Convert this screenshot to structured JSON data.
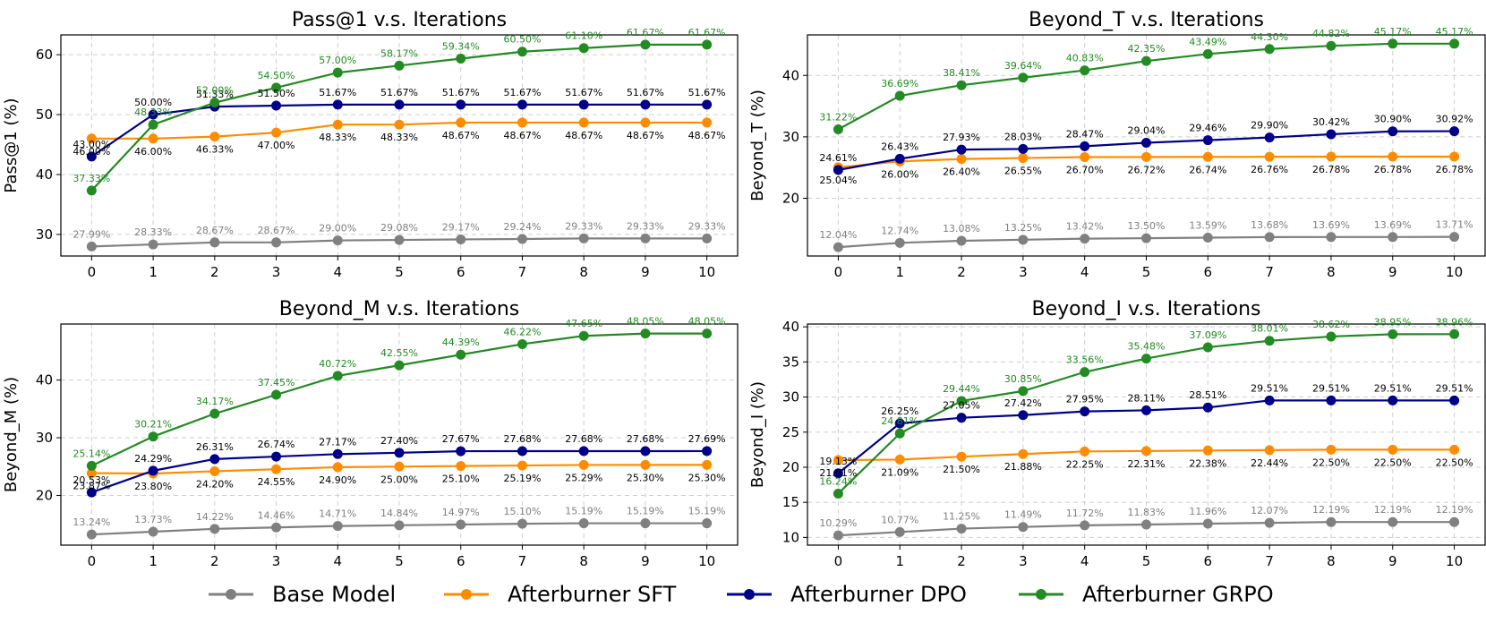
{
  "legend": {
    "items": [
      {
        "label": "Base Model",
        "color": "#808080"
      },
      {
        "label": "Afterburner SFT",
        "color": "#ff8c00"
      },
      {
        "label": "Afterburner DPO",
        "color": "#00008b"
      },
      {
        "label": "Afterburner GRPO",
        "color": "#228b22"
      }
    ]
  },
  "chart_data": [
    {
      "type": "line",
      "title": "Pass@1 v.s. Iterations",
      "xlabel": "",
      "ylabel": "Pass@1 (%)",
      "x": [
        0,
        1,
        2,
        3,
        4,
        5,
        6,
        7,
        8,
        9,
        10
      ],
      "xlim": [
        -0.5,
        10.5
      ],
      "ylim": [
        26.4,
        63.3
      ],
      "yticks": [
        30,
        40,
        50,
        60
      ],
      "grid": true,
      "series": [
        {
          "name": "Base Model",
          "color": "#808080",
          "values": [
            27.99,
            28.33,
            28.67,
            28.67,
            29.0,
            29.08,
            29.17,
            29.24,
            29.33,
            29.33,
            29.33
          ],
          "labels": [
            "27.99%",
            "28.33%",
            "28.67%",
            "28.67%",
            "29.00%",
            "29.08%",
            "29.17%",
            "29.24%",
            "29.33%",
            "29.33%",
            "29.33%"
          ]
        },
        {
          "name": "Afterburner SFT",
          "color": "#ff8c00",
          "label_color": "#000000",
          "values": [
            46.0,
            46.0,
            46.33,
            47.0,
            48.33,
            48.33,
            48.67,
            48.67,
            48.67,
            48.67,
            48.67
          ],
          "labels": [
            "46.00%",
            "46.00%",
            "46.33%",
            "47.00%",
            "48.33%",
            "48.33%",
            "48.67%",
            "48.67%",
            "48.67%",
            "48.67%",
            "48.67%"
          ]
        },
        {
          "name": "Afterburner DPO",
          "color": "#00008b",
          "label_color": "#000000",
          "values": [
            43.0,
            50.0,
            51.33,
            51.5,
            51.67,
            51.67,
            51.67,
            51.67,
            51.67,
            51.67,
            51.67
          ],
          "labels": [
            "43.00%",
            "50.00%",
            "51.33%",
            "51.50%",
            "51.67%",
            "51.67%",
            "51.67%",
            "51.67%",
            "51.67%",
            "51.67%",
            "51.67%"
          ]
        },
        {
          "name": "Afterburner GRPO",
          "color": "#228b22",
          "values": [
            37.33,
            48.33,
            52.0,
            54.5,
            57.0,
            58.17,
            59.34,
            60.5,
            61.1,
            61.67,
            61.67
          ],
          "labels": [
            "37.33%",
            "48.33%",
            "52.00%",
            "54.50%",
            "57.00%",
            "58.17%",
            "59.34%",
            "60.50%",
            "61.10%",
            "61.67%",
            "61.67%"
          ]
        }
      ]
    },
    {
      "type": "line",
      "title": "Beyond_T v.s. Iterations",
      "xlabel": "",
      "ylabel": "Beyond_T (%)",
      "x": [
        0,
        1,
        2,
        3,
        4,
        5,
        6,
        7,
        8,
        9,
        10
      ],
      "xlim": [
        -0.5,
        10.5
      ],
      "ylim": [
        10.6,
        46.6
      ],
      "yticks": [
        20,
        30,
        40
      ],
      "grid": true,
      "series": [
        {
          "name": "Base Model",
          "color": "#808080",
          "values": [
            12.04,
            12.74,
            13.08,
            13.25,
            13.42,
            13.5,
            13.59,
            13.68,
            13.69,
            13.69,
            13.71
          ],
          "labels": [
            "12.04%",
            "12.74%",
            "13.08%",
            "13.25%",
            "13.42%",
            "13.50%",
            "13.59%",
            "13.68%",
            "13.69%",
            "13.69%",
            "13.71%"
          ]
        },
        {
          "name": "Afterburner SFT",
          "color": "#ff8c00",
          "label_color": "#000000",
          "values": [
            25.04,
            26.0,
            26.4,
            26.55,
            26.7,
            26.72,
            26.74,
            26.76,
            26.78,
            26.78,
            26.78
          ],
          "labels": [
            "25.04%",
            "26.00%",
            "26.40%",
            "26.55%",
            "26.70%",
            "26.72%",
            "26.74%",
            "26.76%",
            "26.78%",
            "26.78%",
            "26.78%"
          ]
        },
        {
          "name": "Afterburner DPO",
          "color": "#00008b",
          "label_color": "#000000",
          "values": [
            24.61,
            26.43,
            27.93,
            28.03,
            28.47,
            29.04,
            29.46,
            29.9,
            30.42,
            30.9,
            30.92
          ],
          "labels": [
            "24.61%",
            "26.43%",
            "27.93%",
            "28.03%",
            "28.47%",
            "29.04%",
            "29.46%",
            "29.90%",
            "30.42%",
            "30.90%",
            "30.92%"
          ]
        },
        {
          "name": "Afterburner GRPO",
          "color": "#228b22",
          "values": [
            31.22,
            36.69,
            38.41,
            39.64,
            40.83,
            42.35,
            43.49,
            44.3,
            44.82,
            45.17,
            45.17
          ],
          "labels": [
            "31.22%",
            "36.69%",
            "38.41%",
            "39.64%",
            "40.83%",
            "42.35%",
            "43.49%",
            "44.30%",
            "44.82%",
            "45.17%",
            "45.17%"
          ]
        }
      ]
    },
    {
      "type": "line",
      "title": "Beyond_M v.s. Iterations",
      "xlabel": "",
      "ylabel": "Beyond_M (%)",
      "x": [
        0,
        1,
        2,
        3,
        4,
        5,
        6,
        7,
        8,
        9,
        10
      ],
      "xlim": [
        -0.5,
        10.5
      ],
      "ylim": [
        11.4,
        49.7
      ],
      "yticks": [
        20,
        30,
        40
      ],
      "grid": true,
      "series": [
        {
          "name": "Base Model",
          "color": "#808080",
          "values": [
            13.24,
            13.73,
            14.22,
            14.46,
            14.71,
            14.84,
            14.97,
            15.1,
            15.19,
            15.19,
            15.19
          ],
          "labels": [
            "13.24%",
            "13.73%",
            "14.22%",
            "14.46%",
            "14.71%",
            "14.84%",
            "14.97%",
            "15.10%",
            "15.19%",
            "15.19%",
            "15.19%"
          ]
        },
        {
          "name": "Afterburner SFT",
          "color": "#ff8c00",
          "label_color": "#000000",
          "values": [
            23.87,
            23.8,
            24.2,
            24.55,
            24.9,
            25.0,
            25.1,
            25.19,
            25.29,
            25.3,
            25.3
          ],
          "labels": [
            "23.87%",
            "23.80%",
            "24.20%",
            "24.55%",
            "24.90%",
            "25.00%",
            "25.10%",
            "25.19%",
            "25.29%",
            "25.30%",
            "25.30%"
          ]
        },
        {
          "name": "Afterburner DPO",
          "color": "#00008b",
          "label_color": "#000000",
          "values": [
            20.53,
            24.29,
            26.31,
            26.74,
            27.17,
            27.4,
            27.67,
            27.68,
            27.68,
            27.68,
            27.69
          ],
          "labels": [
            "20.53%",
            "24.29%",
            "26.31%",
            "26.74%",
            "27.17%",
            "27.40%",
            "27.67%",
            "27.68%",
            "27.68%",
            "27.68%",
            "27.69%"
          ]
        },
        {
          "name": "Afterburner GRPO",
          "color": "#228b22",
          "values": [
            25.14,
            30.21,
            34.17,
            37.45,
            40.72,
            42.55,
            44.39,
            46.22,
            47.65,
            48.05,
            48.05
          ],
          "labels": [
            "25.14%",
            "30.21%",
            "34.17%",
            "37.45%",
            "40.72%",
            "42.55%",
            "44.39%",
            "46.22%",
            "47.65%",
            "48.05%",
            "48.05%"
          ]
        }
      ]
    },
    {
      "type": "line",
      "title": "Beyond_I v.s. Iterations",
      "xlabel": "",
      "ylabel": "Beyond_I (%)",
      "x": [
        0,
        1,
        2,
        3,
        4,
        5,
        6,
        7,
        8,
        9,
        10
      ],
      "xlim": [
        -0.5,
        10.5
      ],
      "ylim": [
        8.9,
        40.4
      ],
      "yticks": [
        10,
        15,
        20,
        25,
        30,
        35,
        40
      ],
      "grid": true,
      "series": [
        {
          "name": "Base Model",
          "color": "#808080",
          "values": [
            10.29,
            10.77,
            11.25,
            11.49,
            11.72,
            11.83,
            11.96,
            12.07,
            12.19,
            12.19,
            12.19
          ],
          "labels": [
            "10.29%",
            "10.77%",
            "11.25%",
            "11.49%",
            "11.72%",
            "11.83%",
            "11.96%",
            "12.07%",
            "12.19%",
            "12.19%",
            "12.19%"
          ]
        },
        {
          "name": "Afterburner SFT",
          "color": "#ff8c00",
          "label_color": "#000000",
          "values": [
            21.01,
            21.09,
            21.5,
            21.88,
            22.25,
            22.31,
            22.38,
            22.44,
            22.5,
            22.5,
            22.5
          ],
          "labels": [
            "21.01%",
            "21.09%",
            "21.50%",
            "21.88%",
            "22.25%",
            "22.31%",
            "22.38%",
            "22.44%",
            "22.50%",
            "22.50%",
            "22.50%"
          ]
        },
        {
          "name": "Afterburner DPO",
          "color": "#00008b",
          "label_color": "#000000",
          "values": [
            19.13,
            26.25,
            27.05,
            27.42,
            27.95,
            28.11,
            28.51,
            29.51,
            29.51,
            29.51,
            29.51
          ],
          "labels": [
            "19.13%",
            "26.25%",
            "27.05%",
            "27.42%",
            "27.95%",
            "28.11%",
            "28.51%",
            "29.51%",
            "29.51%",
            "29.51%",
            "29.51%"
          ]
        },
        {
          "name": "Afterburner GRPO",
          "color": "#228b22",
          "values": [
            16.24,
            24.81,
            29.44,
            30.85,
            33.56,
            35.48,
            37.09,
            38.01,
            38.62,
            38.95,
            38.96
          ],
          "labels": [
            "16.24%",
            "24.81%",
            "29.44%",
            "30.85%",
            "33.56%",
            "35.48%",
            "37.09%",
            "38.01%",
            "38.62%",
            "38.95%",
            "38.96%"
          ]
        }
      ]
    }
  ]
}
